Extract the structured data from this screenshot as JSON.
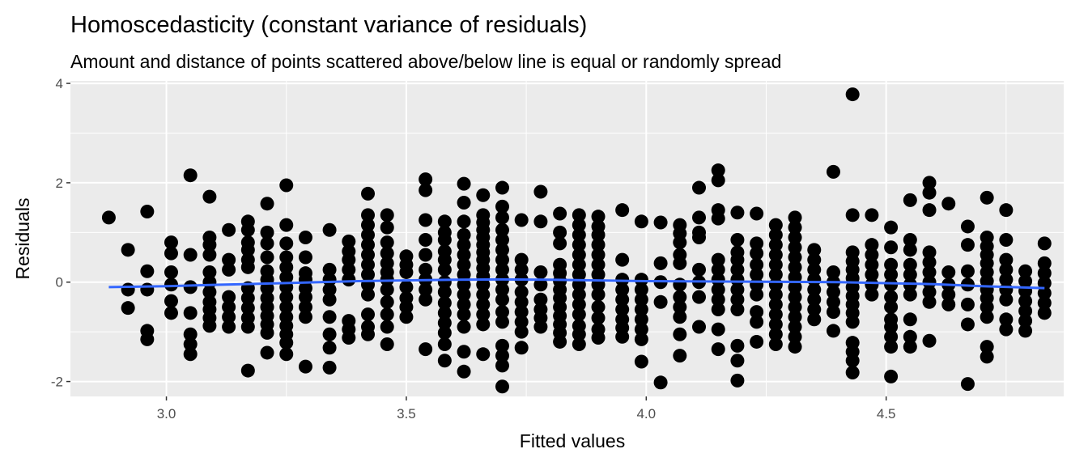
{
  "chart_data": {
    "type": "scatter",
    "title": "Homoscedasticity (constant variance of residuals)",
    "subtitle": "Amount and distance of points scattered above/below line is equal or randomly spread",
    "xlabel": "Fitted values",
    "ylabel": "Residuals",
    "xlim": [
      2.8,
      4.87
    ],
    "ylim": [
      -2.3,
      4.05
    ],
    "x_ticks": [
      3.0,
      3.5,
      4.0,
      4.5
    ],
    "x_tick_labels": [
      "3.0",
      "3.5",
      "4.0",
      "4.5"
    ],
    "y_ticks": [
      -2,
      0,
      2,
      4
    ],
    "y_tick_labels": [
      "-2",
      "0",
      "2",
      "4"
    ],
    "grid": true,
    "panel_background": "#ebebeb",
    "point_color": "#000000",
    "smooth_color": "#3366ff",
    "x_levels": [
      2.88,
      2.92,
      2.96,
      3.01,
      3.05,
      3.09,
      3.13,
      3.17,
      3.21,
      3.25,
      3.29,
      3.34,
      3.38,
      3.42,
      3.46,
      3.5,
      3.54,
      3.58,
      3.62,
      3.66,
      3.7,
      3.74,
      3.78,
      3.82,
      3.86,
      3.9,
      3.95,
      3.99,
      4.03,
      4.07,
      4.11,
      4.15,
      4.19,
      4.23,
      4.27,
      4.31,
      4.35,
      4.39,
      4.43,
      4.47,
      4.51,
      4.55,
      4.59,
      4.63,
      4.67,
      4.71,
      4.75,
      4.79,
      4.83
    ],
    "columns": [
      [
        1.3
      ],
      [
        0.65,
        -0.15,
        -0.52
      ],
      [
        1.42,
        0.22,
        -0.15,
        -0.98,
        -1.15
      ],
      [
        0.8,
        0.58,
        0.2,
        -0.05,
        -0.38,
        -0.62
      ],
      [
        2.15,
        0.55,
        -0.1,
        -0.62,
        -1.05,
        -1.25,
        -1.45
      ],
      [
        1.72,
        0.9,
        0.75,
        0.55,
        0.2,
        0.0,
        -0.2,
        -0.4,
        -0.55,
        -0.72,
        -0.88
      ],
      [
        1.05,
        0.45,
        0.25,
        -0.3,
        -0.5,
        -0.7,
        -0.9
      ],
      [
        1.22,
        1.05,
        0.8,
        0.65,
        0.45,
        0.3,
        -0.12,
        -0.32,
        -0.52,
        -0.72,
        -0.9,
        -1.78
      ],
      [
        1.58,
        1.0,
        0.78,
        0.5,
        0.22,
        0.05,
        -0.12,
        -0.32,
        -0.5,
        -0.68,
        -0.85,
        -1.02,
        -1.42
      ],
      [
        1.95,
        1.15,
        0.78,
        0.5,
        0.3,
        0.1,
        -0.1,
        -0.3,
        -0.5,
        -0.7,
        -0.88,
        -1.05,
        -1.22,
        -1.45
      ],
      [
        0.9,
        0.5,
        0.18,
        0.05,
        -0.12,
        -0.3,
        -0.5,
        -0.7,
        -1.7
      ],
      [
        1.05,
        0.25,
        0.05,
        -0.15,
        -0.35,
        -0.7,
        -1.05,
        -1.32,
        -1.72
      ],
      [
        0.82,
        0.62,
        0.45,
        0.25,
        0.05,
        -0.78,
        -0.95,
        -1.12
      ],
      [
        1.78,
        1.35,
        1.15,
        0.95,
        0.75,
        0.55,
        0.35,
        0.15,
        -0.05,
        -0.25,
        -0.65,
        -0.9,
        -1.05
      ],
      [
        1.35,
        1.1,
        0.8,
        0.58,
        0.38,
        0.2,
        0.05,
        -0.15,
        -0.4,
        -0.65,
        -0.9,
        -1.25
      ],
      [
        0.52,
        0.35,
        0.2,
        -0.1,
        -0.32,
        -0.5,
        -0.7
      ],
      [
        2.07,
        1.85,
        1.25,
        0.85,
        0.55,
        0.25,
        0.05,
        -0.15,
        -0.35,
        -1.35
      ],
      [
        1.22,
        1.0,
        0.85,
        0.62,
        0.45,
        0.25,
        0.0,
        -0.2,
        -0.42,
        -0.62,
        -0.82,
        -1.02,
        -1.25,
        -1.58
      ],
      [
        1.98,
        1.6,
        1.22,
        0.95,
        0.75,
        0.55,
        0.35,
        0.15,
        -0.05,
        -0.25,
        -0.45,
        -0.65,
        -0.9,
        -1.4,
        -1.8
      ],
      [
        1.75,
        1.35,
        1.2,
        1.05,
        0.9,
        0.75,
        0.6,
        0.45,
        0.28,
        0.12,
        -0.05,
        -0.25,
        -0.45,
        -0.65,
        -0.85,
        -1.45
      ],
      [
        1.9,
        1.52,
        1.3,
        1.05,
        0.85,
        0.65,
        0.45,
        0.25,
        0.05,
        -0.15,
        -0.35,
        -0.6,
        -0.8,
        -1.28,
        -1.48,
        -1.68,
        -2.1
      ],
      [
        1.25,
        0.45,
        0.25,
        0.05,
        -0.2,
        -0.4,
        -0.6,
        -0.8,
        -1.0,
        -1.32
      ],
      [
        1.82,
        1.22,
        0.2,
        -0.05,
        -0.35,
        -0.55,
        -0.72,
        -0.9
      ],
      [
        1.38,
        1.0,
        0.78,
        0.35,
        0.18,
        0.02,
        -0.15,
        -0.32,
        -0.5,
        -0.68,
        -0.85,
        -1.02,
        -1.2
      ],
      [
        1.35,
        1.15,
        0.95,
        0.75,
        0.55,
        0.35,
        0.15,
        -0.05,
        -0.25,
        -0.45,
        -0.65,
        -0.88,
        -1.05,
        -1.25
      ],
      [
        1.32,
        1.12,
        0.95,
        0.75,
        0.55,
        0.35,
        0.15,
        -0.05,
        -0.25,
        -0.5,
        -0.72,
        -0.95,
        -1.12
      ],
      [
        1.45,
        0.45,
        0.05,
        -0.15,
        -0.35,
        -0.55,
        -0.75,
        -0.92,
        -1.1
      ],
      [
        1.22,
        0.05,
        -0.15,
        -0.35,
        -0.55,
        -0.75,
        -0.95,
        -1.15,
        -1.6
      ],
      [
        1.2,
        0.38,
        0.0,
        -0.4,
        -2.02
      ],
      [
        1.15,
        0.98,
        0.8,
        0.55,
        0.38,
        -0.05,
        -0.3,
        -0.5,
        -0.7,
        -1.05,
        -1.48
      ],
      [
        1.9,
        1.3,
        1.0,
        0.9,
        0.25,
        0.0,
        -0.3,
        -0.9
      ],
      [
        2.25,
        2.05,
        1.45,
        1.28,
        0.45,
        0.25,
        0.05,
        -0.15,
        -0.35,
        -0.55,
        -0.95,
        -1.35
      ],
      [
        1.4,
        0.85,
        0.6,
        0.45,
        0.25,
        0.05,
        -0.15,
        -0.35,
        -0.55,
        -1.28,
        -1.58,
        -1.98
      ],
      [
        1.38,
        0.78,
        0.58,
        0.35,
        0.15,
        -0.05,
        -0.25,
        -0.6,
        -0.8,
        -1.2
      ],
      [
        1.15,
        0.95,
        0.75,
        0.55,
        0.35,
        0.15,
        -0.05,
        -0.25,
        -0.45,
        -0.65,
        -0.85,
        -1.05,
        -1.25
      ],
      [
        1.3,
        1.1,
        0.9,
        0.7,
        0.5,
        0.3,
        0.1,
        -0.1,
        -0.3,
        -0.5,
        -0.7,
        -0.9,
        -1.1,
        -1.3
      ],
      [
        0.65,
        0.45,
        0.25,
        0.05,
        -0.15,
        -0.35,
        -0.55,
        -0.75
      ],
      [
        2.22,
        0.2,
        0.0,
        -0.2,
        -0.4,
        -0.6,
        -0.98
      ],
      [
        3.78,
        1.35,
        0.6,
        0.42,
        0.25,
        0.08,
        -0.1,
        -0.28,
        -0.45,
        -0.62,
        -0.8,
        -1.22,
        -1.4,
        -1.58,
        -1.82
      ],
      [
        1.35,
        0.75,
        0.55,
        0.35,
        0.15,
        -0.05,
        -0.25
      ],
      [
        1.1,
        0.7,
        0.35,
        0.15,
        -0.05,
        -0.3,
        -0.5,
        -0.75,
        -0.9,
        -1.1,
        -1.3,
        -1.9
      ],
      [
        1.65,
        0.85,
        0.65,
        0.35,
        0.15,
        -0.05,
        -0.25,
        -0.75,
        -1.1,
        -1.3
      ],
      [
        2.0,
        1.8,
        1.45,
        0.6,
        0.4,
        0.2,
        0.0,
        -0.2,
        -0.4,
        -1.18
      ],
      [
        1.58,
        0.2,
        -0.05,
        -0.25,
        -0.45
      ],
      [
        1.12,
        0.75,
        0.22,
        -0.05,
        -0.45,
        -0.85,
        -2.05
      ],
      [
        1.7,
        0.9,
        0.72,
        0.55,
        0.38,
        0.2,
        0.02,
        -0.15,
        -0.32,
        -0.5,
        -0.7,
        -1.3,
        -1.5
      ],
      [
        1.45,
        0.85,
        0.45,
        0.25,
        0.05,
        -0.15,
        -0.35,
        -0.75,
        -0.95
      ],
      [
        0.22,
        0.02,
        -0.18,
        -0.38,
        -0.58,
        -0.78,
        -0.98
      ],
      [
        0.78,
        0.38,
        0.18,
        -0.02,
        -0.22,
        -0.42,
        -0.62
      ]
    ],
    "smooth_line": {
      "x": [
        2.88,
        3.0,
        3.2,
        3.4,
        3.6,
        3.7,
        3.8,
        4.0,
        4.2,
        4.4,
        4.6,
        4.7,
        4.83
      ],
      "y": [
        -0.1,
        -0.08,
        -0.03,
        0.02,
        0.05,
        0.055,
        0.05,
        0.02,
        0.01,
        0.0,
        -0.04,
        -0.08,
        -0.12
      ]
    }
  }
}
